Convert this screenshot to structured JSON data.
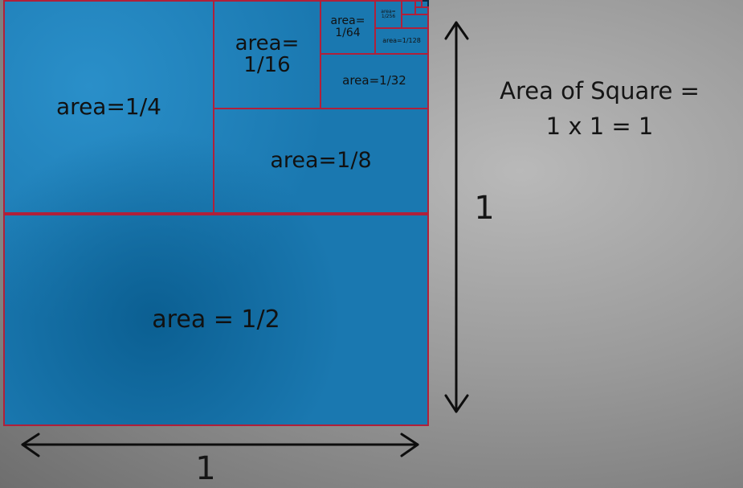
{
  "diagram": {
    "regions": [
      {
        "id": "half",
        "label": "area = 1/2"
      },
      {
        "id": "quarter",
        "label": "area=1/4"
      },
      {
        "id": "eighth",
        "label": "area=1/8"
      },
      {
        "id": "sixteenth",
        "label": "area=\n1/16"
      },
      {
        "id": "thirtysecond",
        "label": "area=1/32"
      },
      {
        "id": "sixtyfourth",
        "label": "area=\n1/64"
      },
      {
        "id": "onetwentyeighth",
        "label": "area=1/128"
      },
      {
        "id": "twofiftysixth",
        "label": "area=\n1/256"
      }
    ],
    "side_label_vertical": "1",
    "side_label_horizontal": "1",
    "caption_line1": "Area of Square =",
    "caption_line2": "1 x 1 = 1",
    "colors": {
      "fill": "#1a78b0",
      "divider": "#b0203a",
      "ink": "#111111",
      "background": "#9a9a9a"
    }
  }
}
